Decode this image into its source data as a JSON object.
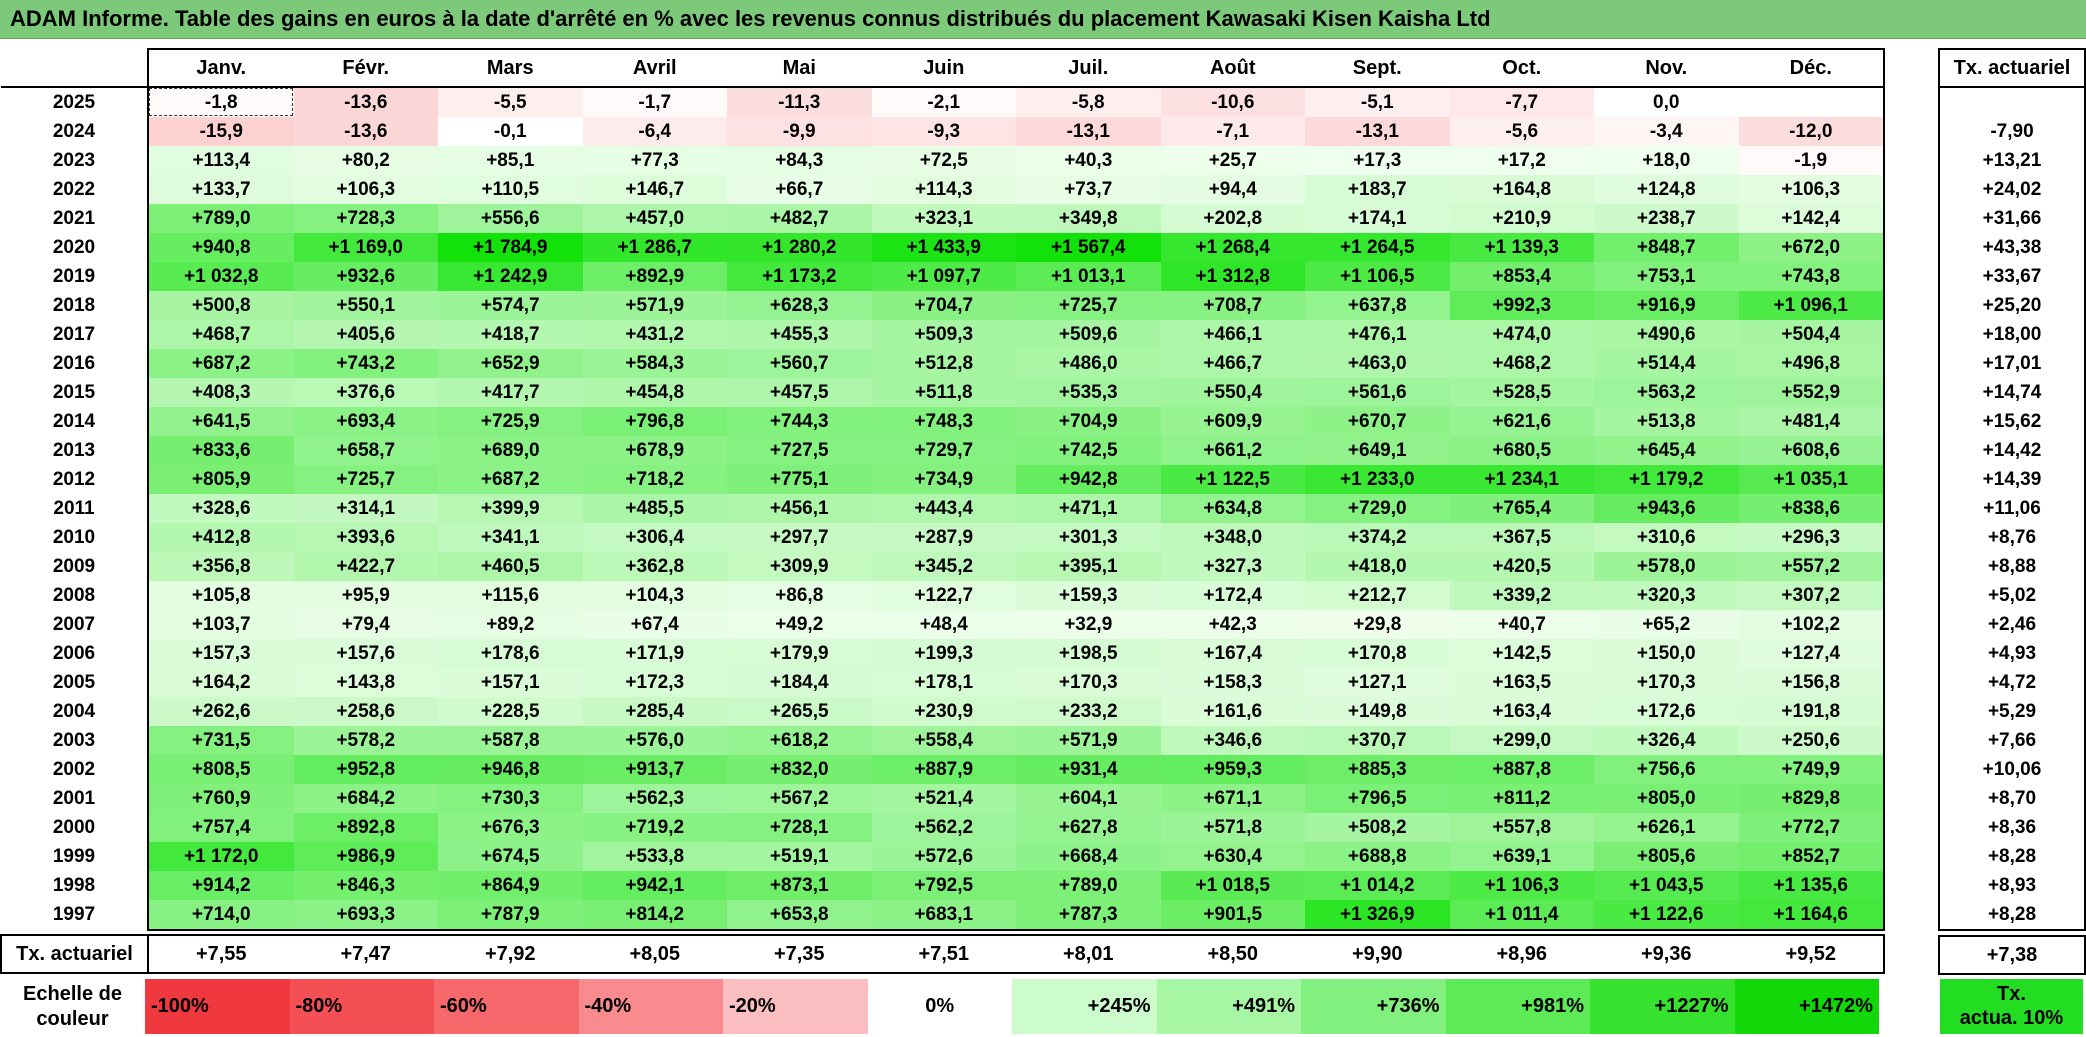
{
  "title": "ADAM Informe. Table des gains en euros à la date d'arrêté en % avec les revenus connus distribués du placement Kawasaki Kisen Kaisha Ltd",
  "months": [
    "Janv.",
    "Févr.",
    "Mars",
    "Avril",
    "Mai",
    "Juin",
    "Juil.",
    "Août",
    "Sept.",
    "Oct.",
    "Nov.",
    "Déc."
  ],
  "side_header": "Tx. actuariel",
  "rows": [
    {
      "year": "2025",
      "cells": [
        "-1,8",
        "-13,6",
        "-5,5",
        "-1,7",
        "-11,3",
        "-2,1",
        "-5,8",
        "-10,6",
        "-5,1",
        "-7,7",
        "0,0",
        ""
      ],
      "rate": ""
    },
    {
      "year": "2024",
      "cells": [
        "-15,9",
        "-13,6",
        "-0,1",
        "-6,4",
        "-9,9",
        "-9,3",
        "-13,1",
        "-7,1",
        "-13,1",
        "-5,6",
        "-3,4",
        "-12,0"
      ],
      "rate": "-7,90"
    },
    {
      "year": "2023",
      "cells": [
        "+113,4",
        "+80,2",
        "+85,1",
        "+77,3",
        "+84,3",
        "+72,5",
        "+40,3",
        "+25,7",
        "+17,3",
        "+17,2",
        "+18,0",
        "-1,9"
      ],
      "rate": "+13,21"
    },
    {
      "year": "2022",
      "cells": [
        "+133,7",
        "+106,3",
        "+110,5",
        "+146,7",
        "+66,7",
        "+114,3",
        "+73,7",
        "+94,4",
        "+183,7",
        "+164,8",
        "+124,8",
        "+106,3"
      ],
      "rate": "+24,02"
    },
    {
      "year": "2021",
      "cells": [
        "+789,0",
        "+728,3",
        "+556,6",
        "+457,0",
        "+482,7",
        "+323,1",
        "+349,8",
        "+202,8",
        "+174,1",
        "+210,9",
        "+238,7",
        "+142,4"
      ],
      "rate": "+31,66"
    },
    {
      "year": "2020",
      "cells": [
        "+940,8",
        "+1 169,0",
        "+1 784,9",
        "+1 286,7",
        "+1 280,2",
        "+1 433,9",
        "+1 567,4",
        "+1 268,4",
        "+1 264,5",
        "+1 139,3",
        "+848,7",
        "+672,0"
      ],
      "rate": "+43,38"
    },
    {
      "year": "2019",
      "cells": [
        "+1 032,8",
        "+932,6",
        "+1 242,9",
        "+892,9",
        "+1 173,2",
        "+1 097,7",
        "+1 013,1",
        "+1 312,8",
        "+1 106,5",
        "+853,4",
        "+753,1",
        "+743,8"
      ],
      "rate": "+33,67"
    },
    {
      "year": "2018",
      "cells": [
        "+500,8",
        "+550,1",
        "+574,7",
        "+571,9",
        "+628,3",
        "+704,7",
        "+725,7",
        "+708,7",
        "+637,8",
        "+992,3",
        "+916,9",
        "+1 096,1"
      ],
      "rate": "+25,20"
    },
    {
      "year": "2017",
      "cells": [
        "+468,7",
        "+405,6",
        "+418,7",
        "+431,2",
        "+455,3",
        "+509,3",
        "+509,6",
        "+466,1",
        "+476,1",
        "+474,0",
        "+490,6",
        "+504,4"
      ],
      "rate": "+18,00"
    },
    {
      "year": "2016",
      "cells": [
        "+687,2",
        "+743,2",
        "+652,9",
        "+584,3",
        "+560,7",
        "+512,8",
        "+486,0",
        "+466,7",
        "+463,0",
        "+468,2",
        "+514,4",
        "+496,8"
      ],
      "rate": "+17,01"
    },
    {
      "year": "2015",
      "cells": [
        "+408,3",
        "+376,6",
        "+417,7",
        "+454,8",
        "+457,5",
        "+511,8",
        "+535,3",
        "+550,4",
        "+561,6",
        "+528,5",
        "+563,2",
        "+552,9"
      ],
      "rate": "+14,74"
    },
    {
      "year": "2014",
      "cells": [
        "+641,5",
        "+693,4",
        "+725,9",
        "+796,8",
        "+744,3",
        "+748,3",
        "+704,9",
        "+609,9",
        "+670,7",
        "+621,6",
        "+513,8",
        "+481,4"
      ],
      "rate": "+15,62"
    },
    {
      "year": "2013",
      "cells": [
        "+833,6",
        "+658,7",
        "+689,0",
        "+678,9",
        "+727,5",
        "+729,7",
        "+742,5",
        "+661,2",
        "+649,1",
        "+680,5",
        "+645,4",
        "+608,6"
      ],
      "rate": "+14,42"
    },
    {
      "year": "2012",
      "cells": [
        "+805,9",
        "+725,7",
        "+687,2",
        "+718,2",
        "+775,1",
        "+734,9",
        "+942,8",
        "+1 122,5",
        "+1 233,0",
        "+1 234,1",
        "+1 179,2",
        "+1 035,1"
      ],
      "rate": "+14,39"
    },
    {
      "year": "2011",
      "cells": [
        "+328,6",
        "+314,1",
        "+399,9",
        "+485,5",
        "+456,1",
        "+443,4",
        "+471,1",
        "+634,8",
        "+729,0",
        "+765,4",
        "+943,6",
        "+838,6"
      ],
      "rate": "+11,06"
    },
    {
      "year": "2010",
      "cells": [
        "+412,8",
        "+393,6",
        "+341,1",
        "+306,4",
        "+297,7",
        "+287,9",
        "+301,3",
        "+348,0",
        "+374,2",
        "+367,5",
        "+310,6",
        "+296,3"
      ],
      "rate": "+8,76"
    },
    {
      "year": "2009",
      "cells": [
        "+356,8",
        "+422,7",
        "+460,5",
        "+362,8",
        "+309,9",
        "+345,2",
        "+395,1",
        "+327,3",
        "+418,0",
        "+420,5",
        "+578,0",
        "+557,2"
      ],
      "rate": "+8,88"
    },
    {
      "year": "2008",
      "cells": [
        "+105,8",
        "+95,9",
        "+115,6",
        "+104,3",
        "+86,8",
        "+122,7",
        "+159,3",
        "+172,4",
        "+212,7",
        "+339,2",
        "+320,3",
        "+307,2"
      ],
      "rate": "+5,02"
    },
    {
      "year": "2007",
      "cells": [
        "+103,7",
        "+79,4",
        "+89,2",
        "+67,4",
        "+49,2",
        "+48,4",
        "+32,9",
        "+42,3",
        "+29,8",
        "+40,7",
        "+65,2",
        "+102,2"
      ],
      "rate": "+2,46"
    },
    {
      "year": "2006",
      "cells": [
        "+157,3",
        "+157,6",
        "+178,6",
        "+171,9",
        "+179,9",
        "+199,3",
        "+198,5",
        "+167,4",
        "+170,8",
        "+142,5",
        "+150,0",
        "+127,4"
      ],
      "rate": "+4,93"
    },
    {
      "year": "2005",
      "cells": [
        "+164,2",
        "+143,8",
        "+157,1",
        "+172,3",
        "+184,4",
        "+178,1",
        "+170,3",
        "+158,3",
        "+127,1",
        "+163,5",
        "+170,3",
        "+156,8"
      ],
      "rate": "+4,72"
    },
    {
      "year": "2004",
      "cells": [
        "+262,6",
        "+258,6",
        "+228,5",
        "+285,4",
        "+265,5",
        "+230,9",
        "+233,2",
        "+161,6",
        "+149,8",
        "+163,4",
        "+172,6",
        "+191,8"
      ],
      "rate": "+5,29"
    },
    {
      "year": "2003",
      "cells": [
        "+731,5",
        "+578,2",
        "+587,8",
        "+576,0",
        "+618,2",
        "+558,4",
        "+571,9",
        "+346,6",
        "+370,7",
        "+299,0",
        "+326,4",
        "+250,6"
      ],
      "rate": "+7,66"
    },
    {
      "year": "2002",
      "cells": [
        "+808,5",
        "+952,8",
        "+946,8",
        "+913,7",
        "+832,0",
        "+887,9",
        "+931,4",
        "+959,3",
        "+885,3",
        "+887,8",
        "+756,6",
        "+749,9"
      ],
      "rate": "+10,06"
    },
    {
      "year": "2001",
      "cells": [
        "+760,9",
        "+684,2",
        "+730,3",
        "+562,3",
        "+567,2",
        "+521,4",
        "+604,1",
        "+671,1",
        "+796,5",
        "+811,2",
        "+805,0",
        "+829,8"
      ],
      "rate": "+8,70"
    },
    {
      "year": "2000",
      "cells": [
        "+757,4",
        "+892,8",
        "+676,3",
        "+719,2",
        "+728,1",
        "+562,2",
        "+627,8",
        "+571,8",
        "+508,2",
        "+557,8",
        "+626,1",
        "+772,7"
      ],
      "rate": "+8,36"
    },
    {
      "year": "1999",
      "cells": [
        "+1 172,0",
        "+986,9",
        "+674,5",
        "+533,8",
        "+519,1",
        "+572,6",
        "+668,4",
        "+630,4",
        "+688,8",
        "+639,1",
        "+805,6",
        "+852,7"
      ],
      "rate": "+8,28"
    },
    {
      "year": "1998",
      "cells": [
        "+914,2",
        "+846,3",
        "+864,9",
        "+942,1",
        "+873,1",
        "+792,5",
        "+789,0",
        "+1 018,5",
        "+1 014,2",
        "+1 106,3",
        "+1 043,5",
        "+1 135,6"
      ],
      "rate": "+8,93"
    },
    {
      "year": "1997",
      "cells": [
        "+714,0",
        "+693,3",
        "+787,9",
        "+814,2",
        "+653,8",
        "+683,1",
        "+787,3",
        "+901,5",
        "+1 326,9",
        "+1 011,4",
        "+1 122,6",
        "+1 164,6"
      ],
      "rate": "+8,28"
    }
  ],
  "footer": {
    "label": "Tx. actuariel",
    "cells": [
      "+7,55",
      "+7,47",
      "+7,92",
      "+8,05",
      "+7,35",
      "+7,51",
      "+8,01",
      "+8,50",
      "+9,90",
      "+8,96",
      "+9,36",
      "+9,52"
    ],
    "rate": "+7,38"
  },
  "legend": {
    "label_line1": "Echelle de",
    "label_line2": "couleur",
    "swatches": [
      "-100%",
      "-80%",
      "-60%",
      "-40%",
      "-20%",
      "0%",
      "+245%",
      "+491%",
      "+736%",
      "+981%",
      "+1227%",
      "+1472%"
    ],
    "swatch_colors": [
      "#f0383f",
      "#f34f55",
      "#f6686c",
      "#f98a8d",
      "#fcbfc1",
      "#ffffff",
      "#ccfbcc",
      "#a6f6a4",
      "#82f07e",
      "#5cea56",
      "#36e22e",
      "#12d80a"
    ],
    "side_line1": "Tx.",
    "side_line2": "actua. 10%",
    "side_color": "#22dd22"
  }
}
